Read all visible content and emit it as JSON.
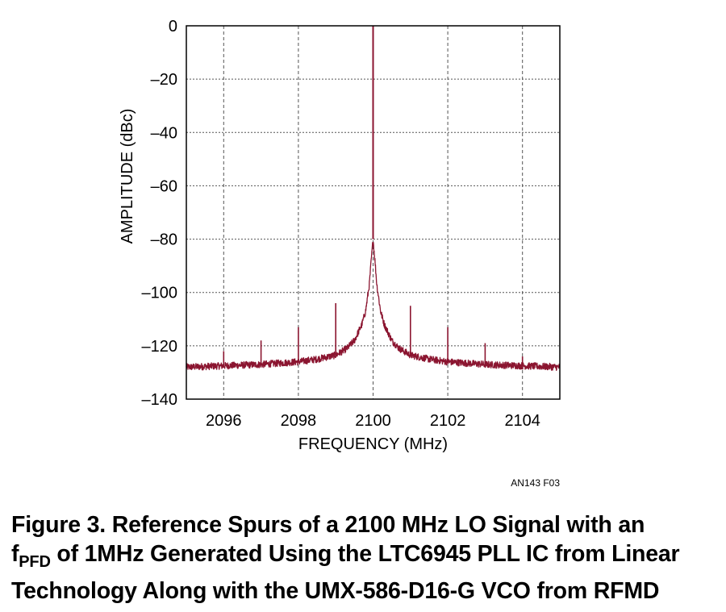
{
  "chart_data": {
    "type": "line",
    "title": "",
    "xlabel": "FREQUENCY (MHz)",
    "ylabel": "AMPLITUDE (dBc)",
    "xlim": [
      2095,
      2105
    ],
    "ylim": [
      -140,
      0
    ],
    "x_ticks": [
      2096,
      2098,
      2100,
      2102,
      2104
    ],
    "y_ticks": [
      0,
      -20,
      -40,
      -60,
      -80,
      -100,
      -120,
      -140
    ],
    "x_tick_labels": [
      "2096",
      "2098",
      "2100",
      "2102",
      "2104"
    ],
    "y_tick_labels": [
      "0",
      "–20",
      "–40",
      "–60",
      "–80",
      "–100",
      "–120",
      "–140"
    ],
    "grid": true,
    "series": [
      {
        "color": "#8b1530",
        "noise_floor": [
          [
            2095,
            -128
          ],
          [
            2096,
            -127.5
          ],
          [
            2097,
            -127
          ],
          [
            2098,
            -126
          ],
          [
            2098.5,
            -125
          ],
          [
            2099,
            -123.5
          ],
          [
            2099.3,
            -121
          ],
          [
            2099.5,
            -118
          ],
          [
            2099.7,
            -112
          ],
          [
            2099.8,
            -107
          ],
          [
            2099.9,
            -97
          ],
          [
            2099.95,
            -88
          ],
          [
            2100,
            -80
          ],
          [
            2100.05,
            -88
          ],
          [
            2100.1,
            -97
          ],
          [
            2100.2,
            -107
          ],
          [
            2100.3,
            -112
          ],
          [
            2100.5,
            -118
          ],
          [
            2100.7,
            -121
          ],
          [
            2101,
            -123.5
          ],
          [
            2101.5,
            -125
          ],
          [
            2102,
            -126
          ],
          [
            2103,
            -127
          ],
          [
            2104,
            -127.5
          ],
          [
            2105,
            -128
          ]
        ],
        "peaks": [
          {
            "x": 2096,
            "y": -122
          },
          {
            "x": 2097,
            "y": -118
          },
          {
            "x": 2098,
            "y": -113
          },
          {
            "x": 2099,
            "y": -104
          },
          {
            "x": 2100,
            "y": 0
          },
          {
            "x": 2101,
            "y": -105
          },
          {
            "x": 2102,
            "y": -113
          },
          {
            "x": 2103,
            "y": -119
          },
          {
            "x": 2104,
            "y": -124
          }
        ]
      }
    ]
  },
  "figure_id": "AN143 F03",
  "caption": {
    "line1": "Figure 3. Reference Spurs of a 2100 MHz LO Signal with an",
    "line2_f": "f",
    "line2_sub": "PFD",
    "line2_rest": " of 1MHz Generated Using the LTC6945 PLL IC from Linear",
    "line3": "Technology Along with the UMX-586-D16-G VCO from RFMD"
  }
}
